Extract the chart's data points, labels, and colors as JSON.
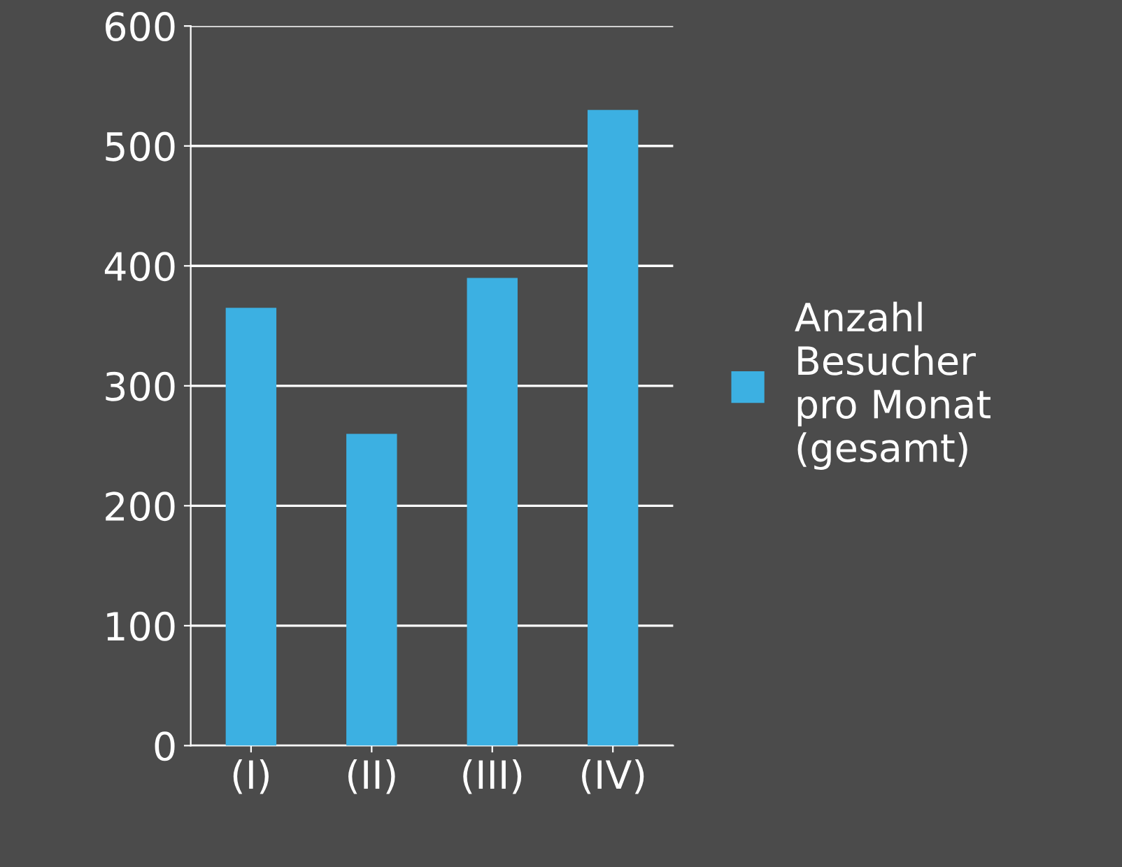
{
  "chart_data": {
    "type": "bar",
    "categories": [
      "(I)",
      "(II)",
      "(III)",
      "(IV)"
    ],
    "series": [
      {
        "name": "Anzahl Besucher pro Monat (gesamt)",
        "color": "#3cb0e2",
        "values": [
          365,
          260,
          390,
          530
        ]
      }
    ],
    "ylim": [
      0,
      600
    ],
    "yticks": [
      0,
      100,
      200,
      300,
      400,
      500,
      600
    ],
    "grid": "y",
    "legend": "right"
  }
}
